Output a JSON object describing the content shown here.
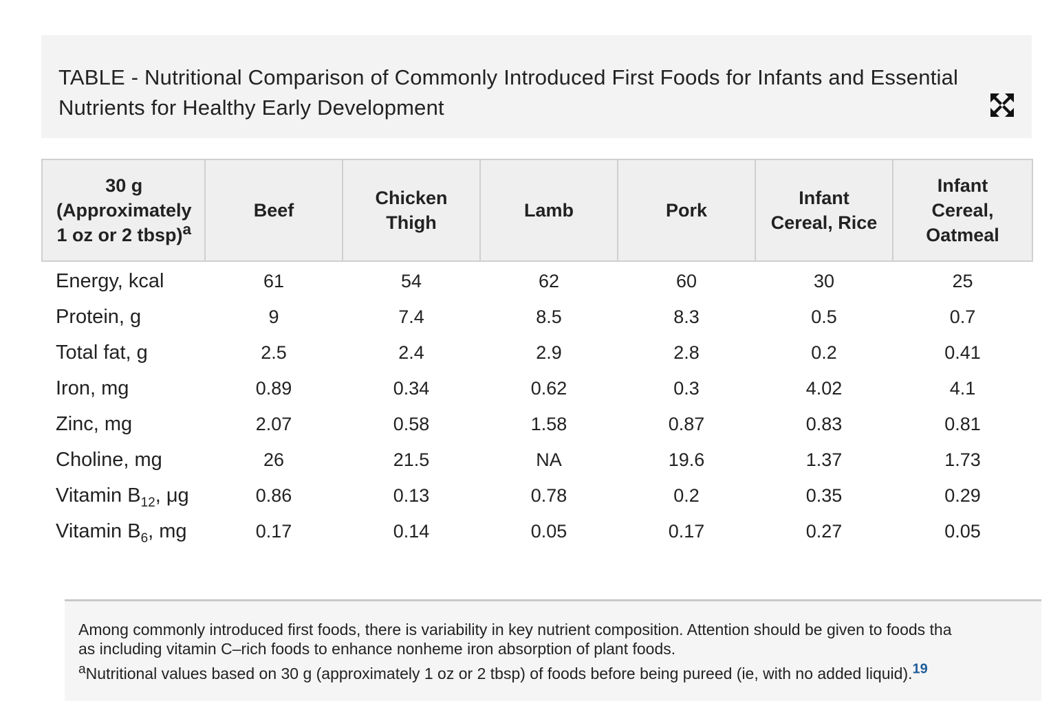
{
  "title": "TABLE - Nutritional Comparison of Commonly Introduced First Foods for Infants and Essential Nutrients for Healthy Early Development",
  "expand_icon": "expand-arrows-icon",
  "table": {
    "header": {
      "first_line1": "30 g",
      "first_line2": "(Approximately",
      "first_line3": "1 oz or 2 tbsp)",
      "first_sup": "a",
      "columns": [
        {
          "line1": "Beef",
          "line2": "",
          "line3": ""
        },
        {
          "line1": "Chicken",
          "line2": "Thigh",
          "line3": ""
        },
        {
          "line1": "Lamb",
          "line2": "",
          "line3": ""
        },
        {
          "line1": "Pork",
          "line2": "",
          "line3": ""
        },
        {
          "line1": "Infant",
          "line2": "Cereal, Rice",
          "line3": ""
        },
        {
          "line1": "Infant",
          "line2": "Cereal,",
          "line3": "Oatmeal"
        }
      ]
    },
    "rows": [
      {
        "label": "Energy, kcal",
        "label_sub": "",
        "label_unit": "",
        "values": [
          "61",
          "54",
          "62",
          "60",
          "30",
          "25"
        ]
      },
      {
        "label": "Protein, g",
        "label_sub": "",
        "label_unit": "",
        "values": [
          "9",
          "7.4",
          "8.5",
          "8.3",
          "0.5",
          "0.7"
        ]
      },
      {
        "label": "Total fat, g",
        "label_sub": "",
        "label_unit": "",
        "values": [
          "2.5",
          "2.4",
          "2.9",
          "2.8",
          "0.2",
          "0.41"
        ]
      },
      {
        "label": "Iron, mg",
        "label_sub": "",
        "label_unit": "",
        "values": [
          "0.89",
          "0.34",
          "0.62",
          "0.3",
          "4.02",
          "4.1"
        ]
      },
      {
        "label": "Zinc, mg",
        "label_sub": "",
        "label_unit": "",
        "values": [
          "2.07",
          "0.58",
          "1.58",
          "0.87",
          "0.83",
          "0.81"
        ]
      },
      {
        "label": "Choline, mg",
        "label_sub": "",
        "label_unit": "",
        "values": [
          "26",
          "21.5",
          "NA",
          "19.6",
          "1.37",
          "1.73"
        ]
      },
      {
        "label": "Vitamin B",
        "label_sub": "12",
        "label_unit": ", μg",
        "values": [
          "0.86",
          "0.13",
          "0.78",
          "0.2",
          "0.35",
          "0.29"
        ]
      },
      {
        "label": "Vitamin B",
        "label_sub": "6",
        "label_unit": ", mg",
        "values": [
          "0.17",
          "0.14",
          "0.05",
          "0.17",
          "0.27",
          "0.05"
        ]
      }
    ]
  },
  "footnote": {
    "line1": "Among commonly introduced first foods, there is variability in key nutrient composition. Attention should be given to foods tha",
    "line2": "as including vitamin C–rich foods to enhance nonheme iron absorption of plant foods.",
    "note_sup": "a",
    "note_text": "Nutritional values based on 30 g (approximately 1 oz or 2 tbsp) of foods before being pureed (ie, with no added liquid).",
    "ref": "19"
  },
  "colors": {
    "title_bg": "#f3f3f3",
    "header_bg": "#efefef",
    "border": "#cfcfcf",
    "link": "#1f5c99"
  }
}
